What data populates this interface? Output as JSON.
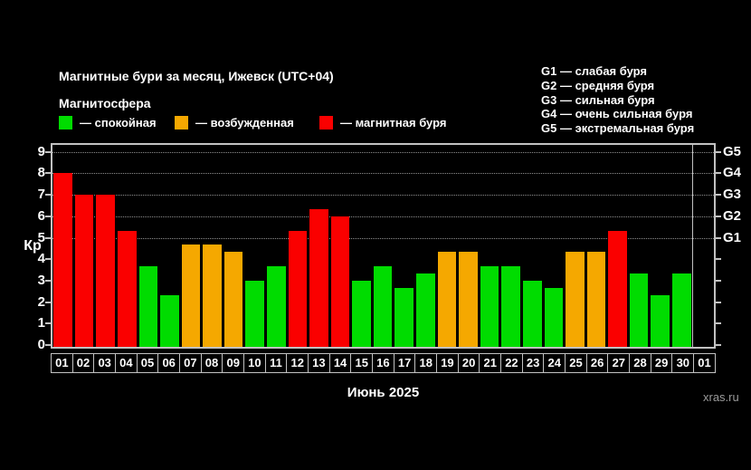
{
  "page": {
    "title": "Магнитные бури за месяц, Ижевск (UTC+04)",
    "subtitle": "Магнитосфера",
    "watermark": "xras.ru",
    "background_color": "#000000",
    "text_color": "#ffffff",
    "frame_color": "#c2c2c2",
    "grid_color": "#8f8f8f",
    "watermark_color": "#9a9a9a"
  },
  "legend": {
    "items": [
      {
        "label": "— спокойная",
        "status": "quiet",
        "color": "#00dc00"
      },
      {
        "label": "— возбужденная",
        "status": "excited",
        "color": "#f5a800"
      },
      {
        "label": "— магнитная буря",
        "status": "storm",
        "color": "#fa0000"
      }
    ]
  },
  "storm_scale_legend": {
    "lines": [
      "G1 — слабая буря",
      "G2 — средняя буря",
      "G3 — сильная буря",
      "G4 — очень сильная буря",
      "G5 — экстремальная буря"
    ]
  },
  "chart_data": {
    "type": "bar",
    "title": "Магнитные бури за месяц, Ижевск (UTC+04)",
    "subtitle": "Магнитосфера",
    "xlabel": "Июнь 2025",
    "ylabel": "Кр",
    "ylim": [
      0,
      9.4
    ],
    "y_ticks": [
      0,
      1,
      2,
      3,
      4,
      5,
      6,
      7,
      8,
      9
    ],
    "gridlines_kp": [
      5,
      6,
      7,
      8,
      9
    ],
    "grid_style": "dotted",
    "legend_position": "top-left",
    "right_axis": [
      {
        "label": "G1",
        "kp": 5
      },
      {
        "label": "G2",
        "kp": 6
      },
      {
        "label": "G3",
        "kp": 7
      },
      {
        "label": "G4",
        "kp": 8
      },
      {
        "label": "G5",
        "kp": 9
      }
    ],
    "palette": {
      "quiet": "#00dc00",
      "excited": "#f5a800",
      "storm": "#fa0000",
      "none": "transparent"
    },
    "month_boundary_after_index": 29,
    "days": [
      {
        "day": "01",
        "kp": 8.0,
        "status": "storm"
      },
      {
        "day": "02",
        "kp": 7.0,
        "status": "storm"
      },
      {
        "day": "03",
        "kp": 7.0,
        "status": "storm"
      },
      {
        "day": "04",
        "kp": 5.33,
        "status": "storm"
      },
      {
        "day": "05",
        "kp": 3.67,
        "status": "quiet"
      },
      {
        "day": "06",
        "kp": 2.33,
        "status": "quiet"
      },
      {
        "day": "07",
        "kp": 4.67,
        "status": "excited"
      },
      {
        "day": "08",
        "kp": 4.67,
        "status": "excited"
      },
      {
        "day": "09",
        "kp": 4.33,
        "status": "excited"
      },
      {
        "day": "10",
        "kp": 3.0,
        "status": "quiet"
      },
      {
        "day": "11",
        "kp": 3.67,
        "status": "quiet"
      },
      {
        "day": "12",
        "kp": 5.33,
        "status": "storm"
      },
      {
        "day": "13",
        "kp": 6.33,
        "status": "storm"
      },
      {
        "day": "14",
        "kp": 6.0,
        "status": "storm"
      },
      {
        "day": "15",
        "kp": 3.0,
        "status": "quiet"
      },
      {
        "day": "16",
        "kp": 3.67,
        "status": "quiet"
      },
      {
        "day": "17",
        "kp": 2.67,
        "status": "quiet"
      },
      {
        "day": "18",
        "kp": 3.33,
        "status": "quiet"
      },
      {
        "day": "19",
        "kp": 4.33,
        "status": "excited"
      },
      {
        "day": "20",
        "kp": 4.33,
        "status": "excited"
      },
      {
        "day": "21",
        "kp": 3.67,
        "status": "quiet"
      },
      {
        "day": "22",
        "kp": 3.67,
        "status": "quiet"
      },
      {
        "day": "23",
        "kp": 3.0,
        "status": "quiet"
      },
      {
        "day": "24",
        "kp": 2.67,
        "status": "quiet"
      },
      {
        "day": "25",
        "kp": 4.33,
        "status": "excited"
      },
      {
        "day": "26",
        "kp": 4.33,
        "status": "excited"
      },
      {
        "day": "27",
        "kp": 5.33,
        "status": "storm"
      },
      {
        "day": "28",
        "kp": 3.33,
        "status": "quiet"
      },
      {
        "day": "29",
        "kp": 2.33,
        "status": "quiet"
      },
      {
        "day": "30",
        "kp": 3.33,
        "status": "quiet"
      },
      {
        "day": "01",
        "kp": null,
        "status": "none"
      }
    ]
  }
}
